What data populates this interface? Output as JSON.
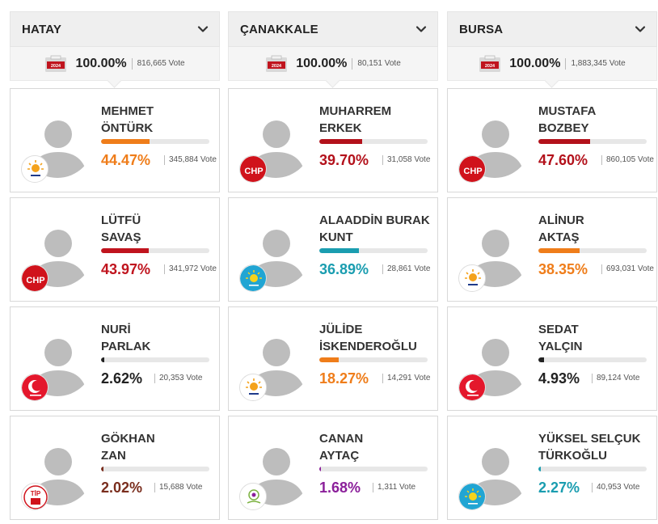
{
  "columns": [
    {
      "title": "HATAY",
      "summary": {
        "year": "2024",
        "percent": "100.00%",
        "votes": "816,665 Vote"
      },
      "candidates": [
        {
          "name_line1": "MEHMET",
          "name_line2": "ÖNTÜRK",
          "percent": "44.47%",
          "share": 44.47,
          "votes": "345,884 Vote",
          "color": "#ef7d1a",
          "party": "akp-logo"
        },
        {
          "name_line1": "LÜTFÜ",
          "name_line2": "SAVAŞ",
          "percent": "43.97%",
          "share": 43.97,
          "votes": "341,972 Vote",
          "color": "#c0141e",
          "party": "chp-logo",
          "party_text": "CHP"
        },
        {
          "name_line1": "NURİ",
          "name_line2": "PARLAK",
          "percent": "2.62%",
          "share": 2.62,
          "votes": "20,353 Vote",
          "color": "#222222",
          "party": "yeniden-refah-logo"
        },
        {
          "name_line1": "GÖKHAN",
          "name_line2": "ZAN",
          "percent": "2.02%",
          "share": 2.02,
          "votes": "15,688 Vote",
          "color": "#7a2e1e",
          "party": "tip-logo",
          "party_text": "TİP"
        }
      ]
    },
    {
      "title": "ÇANAKKALE",
      "summary": {
        "year": "2024",
        "percent": "100.00%",
        "votes": "80,151 Vote"
      },
      "candidates": [
        {
          "name_line1": "MUHARREM",
          "name_line2": "ERKEK",
          "percent": "39.70%",
          "share": 39.7,
          "votes": "31,058 Vote",
          "color": "#b3111b",
          "party": "chp-logo",
          "party_text": "CHP"
        },
        {
          "name_line1": "ALAADDİN BURAK",
          "name_line2": "KUNT",
          "percent": "36.89%",
          "share": 36.89,
          "votes": "28,861 Vote",
          "color": "#1a9db0",
          "party": "iyi-logo"
        },
        {
          "name_line1": "JÜLİDE",
          "name_line2": "İSKENDEROĞLU",
          "percent": "18.27%",
          "share": 18.27,
          "votes": "14,291 Vote",
          "color": "#ef7d1a",
          "party": "akp-logo"
        },
        {
          "name_line1": "CANAN",
          "name_line2": "AYTAÇ",
          "percent": "1.68%",
          "share": 1.68,
          "votes": "1,311 Vote",
          "color": "#8b1f9a",
          "party": "dem-logo"
        }
      ]
    },
    {
      "title": "BURSA",
      "summary": {
        "year": "2024",
        "percent": "100.00%",
        "votes": "1,883,345 Vote"
      },
      "candidates": [
        {
          "name_line1": "MUSTAFA",
          "name_line2": "BOZBEY",
          "percent": "47.60%",
          "share": 47.6,
          "votes": "860,105 Vote",
          "color": "#b3111b",
          "party": "chp-logo",
          "party_text": "CHP"
        },
        {
          "name_line1": "ALİNUR",
          "name_line2": "AKTAŞ",
          "percent": "38.35%",
          "share": 38.35,
          "votes": "693,031 Vote",
          "color": "#ef7d1a",
          "party": "akp-logo"
        },
        {
          "name_line1": "SEDAT",
          "name_line2": "YALÇIN",
          "percent": "4.93%",
          "share": 4.93,
          "votes": "89,124 Vote",
          "color": "#222222",
          "party": "yeniden-refah-logo"
        },
        {
          "name_line1": "YÜKSEL SELÇUK",
          "name_line2": "TÜRKOĞLU",
          "percent": "2.27%",
          "share": 2.27,
          "votes": "40,953 Vote",
          "color": "#1a9db0",
          "party": "iyi-logo"
        }
      ]
    }
  ]
}
